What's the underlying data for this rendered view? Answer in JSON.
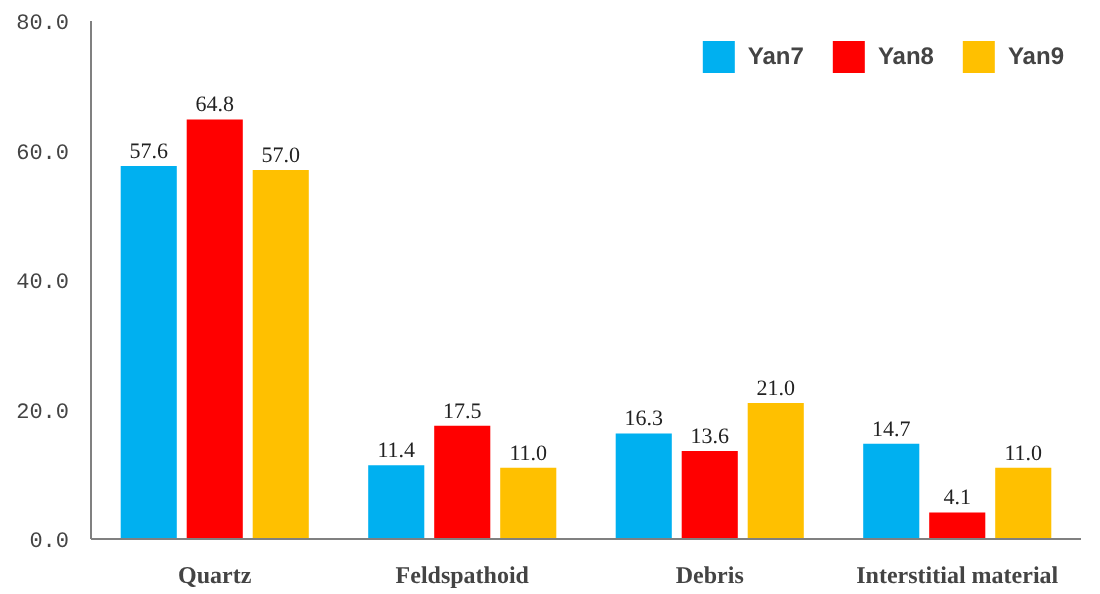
{
  "chart_data": {
    "type": "bar",
    "categories": [
      "Quartz",
      "Feldspathoid",
      "Debris",
      "Interstitial material"
    ],
    "series": [
      {
        "name": "Yan7",
        "color": "#00b0f0",
        "values": [
          57.6,
          11.4,
          16.3,
          14.7
        ],
        "value_labels": [
          "57.6",
          "11.4",
          "16.3",
          "14.7"
        ]
      },
      {
        "name": "Yan8",
        "color": "#ff0000",
        "values": [
          64.8,
          17.5,
          13.6,
          4.1
        ],
        "value_labels": [
          "64.8",
          "17.5",
          "13.6",
          "4.1"
        ]
      },
      {
        "name": "Yan9",
        "color": "#ffc000",
        "values": [
          57.0,
          11.0,
          21.0,
          11.0
        ],
        "value_labels": [
          "57.0",
          "11.0",
          "21.0",
          "11.0"
        ]
      }
    ],
    "ylim": [
      0,
      80
    ],
    "yticks": [
      {
        "value": 0,
        "label": "0.0"
      },
      {
        "value": 20,
        "label": "20.0"
      },
      {
        "value": 40,
        "label": "40.0"
      },
      {
        "value": 60,
        "label": "60.0"
      },
      {
        "value": 80,
        "label": "80.0"
      }
    ],
    "legend": "top right",
    "grid": false
  }
}
